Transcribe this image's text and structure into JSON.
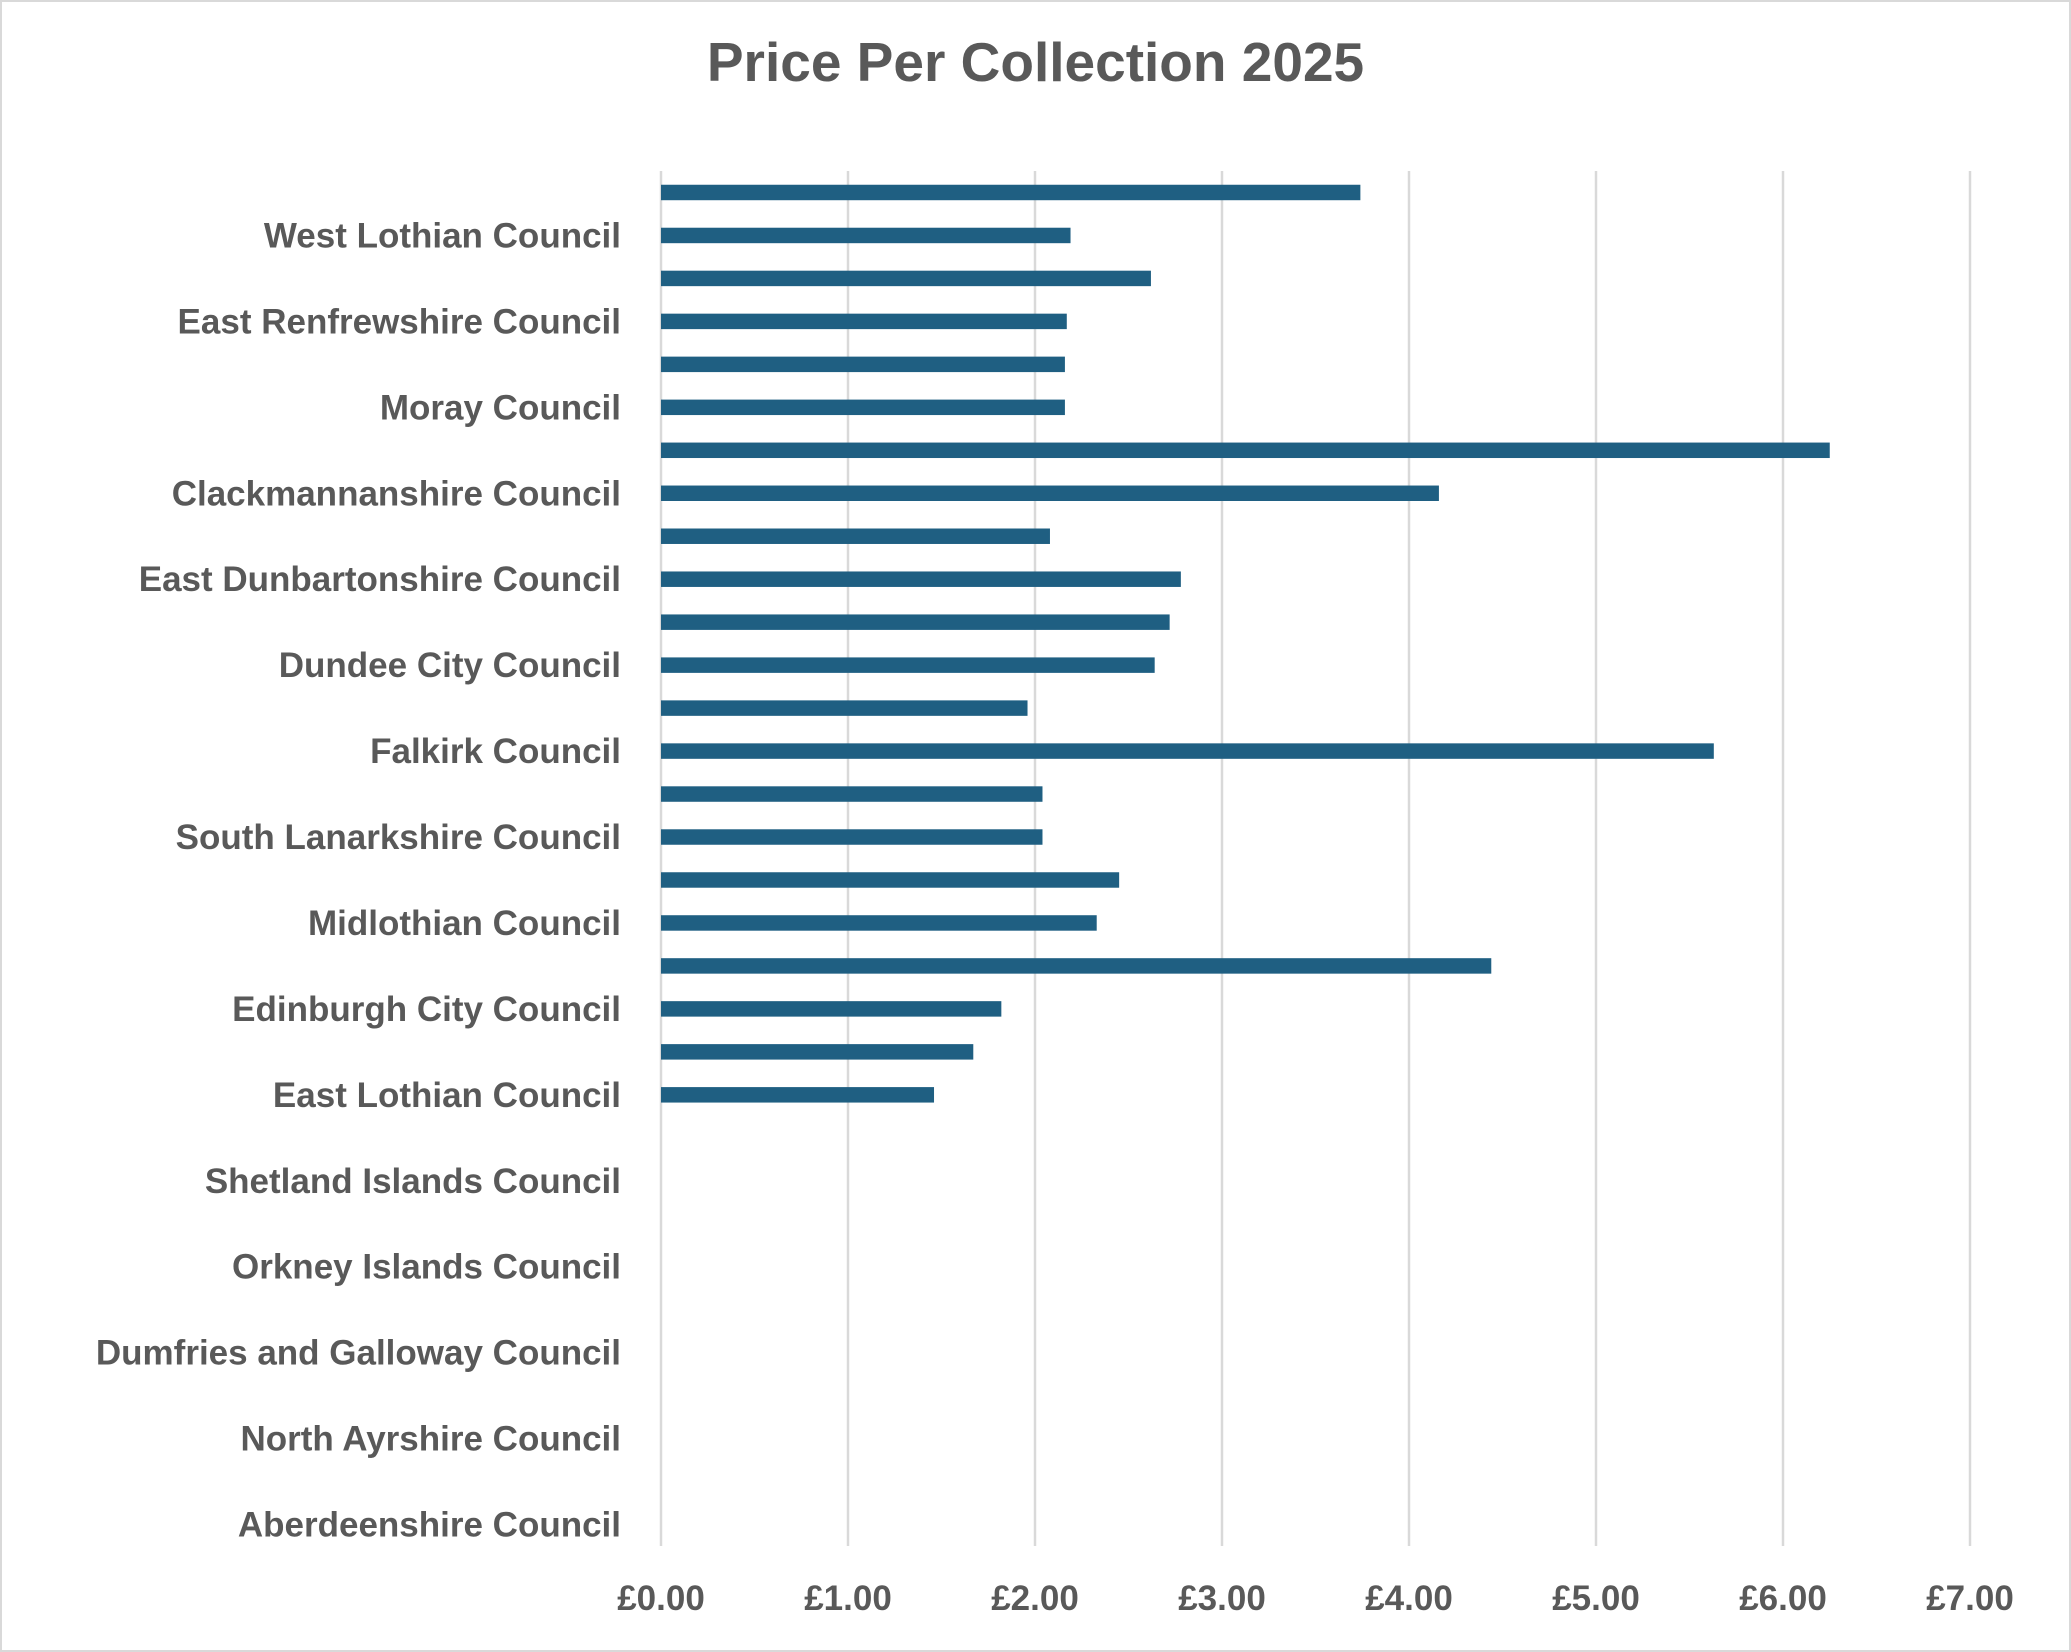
{
  "chart_data": {
    "type": "bar",
    "orientation": "horizontal",
    "title": "Price Per Collection 2025",
    "xlabel": "",
    "ylabel": "",
    "xlim": [
      0,
      7
    ],
    "x_ticks": [
      "£0.00",
      "£1.00",
      "£2.00",
      "£3.00",
      "£4.00",
      "£5.00",
      "£6.00",
      "£7.00"
    ],
    "grid": "vertical",
    "legend": "none",
    "bar_color": "#1f5f82",
    "label_every": 2,
    "categories_top_to_bottom": [
      {
        "label": "",
        "value": 3.74
      },
      {
        "label": "West Lothian Council",
        "value": 2.19
      },
      {
        "label": "",
        "value": 2.62
      },
      {
        "label": "East Renfrewshire Council",
        "value": 2.17
      },
      {
        "label": "",
        "value": 2.16
      },
      {
        "label": "Moray Council",
        "value": 2.16
      },
      {
        "label": "",
        "value": 6.25
      },
      {
        "label": "Clackmannanshire Council",
        "value": 4.16
      },
      {
        "label": "",
        "value": 2.08
      },
      {
        "label": "East Dunbartonshire Council",
        "value": 2.78
      },
      {
        "label": "",
        "value": 2.72
      },
      {
        "label": "Dundee City Council",
        "value": 2.64
      },
      {
        "label": "",
        "value": 1.96
      },
      {
        "label": "Falkirk Council",
        "value": 5.63
      },
      {
        "label": "",
        "value": 2.04
      },
      {
        "label": "South Lanarkshire Council",
        "value": 2.04
      },
      {
        "label": "",
        "value": 2.45
      },
      {
        "label": "Midlothian Council",
        "value": 2.33
      },
      {
        "label": "",
        "value": 4.44
      },
      {
        "label": "Edinburgh City Council",
        "value": 1.82
      },
      {
        "label": "",
        "value": 1.67
      },
      {
        "label": "East Lothian Council",
        "value": 1.46
      },
      {
        "label": "",
        "value": 0
      },
      {
        "label": "Shetland Islands Council",
        "value": 0
      },
      {
        "label": "",
        "value": 0
      },
      {
        "label": "Orkney Islands Council",
        "value": 0
      },
      {
        "label": "",
        "value": 0
      },
      {
        "label": "Dumfries and Galloway Council",
        "value": 0
      },
      {
        "label": "",
        "value": 0
      },
      {
        "label": "North Ayrshire Council",
        "value": 0
      },
      {
        "label": "",
        "value": 0
      },
      {
        "label": "Aberdeenshire Council",
        "value": 0
      }
    ]
  }
}
